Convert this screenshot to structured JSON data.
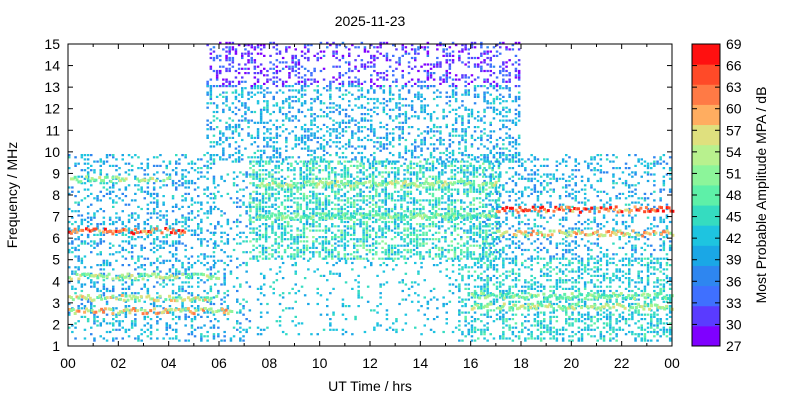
{
  "chart_data": {
    "type": "heatmap",
    "title": "2025-11-23",
    "xlabel": "UT Time / hrs",
    "ylabel": "Frequency / MHz",
    "xlim": [
      0,
      24
    ],
    "ylim": [
      1,
      15
    ],
    "x_ticks": [
      "00",
      "02",
      "04",
      "06",
      "08",
      "10",
      "12",
      "14",
      "16",
      "18",
      "20",
      "22",
      "00"
    ],
    "y_ticks": [
      "1",
      "2",
      "3",
      "4",
      "5",
      "6",
      "7",
      "8",
      "9",
      "10",
      "11",
      "12",
      "13",
      "14",
      "15"
    ],
    "colorbar": {
      "label": "Most Probable Amplitude MPA / dB",
      "range": [
        27,
        69
      ],
      "ticks": [
        "27",
        "30",
        "33",
        "36",
        "39",
        "42",
        "45",
        "48",
        "51",
        "54",
        "57",
        "60",
        "63",
        "66",
        "69"
      ],
      "colors": [
        "#7f00ff",
        "#5a3bff",
        "#3f70ff",
        "#2e86f0",
        "#1aa7e6",
        "#1ec4e0",
        "#35dcc0",
        "#5ef0a8",
        "#8cf59a",
        "#b8f18e",
        "#dfe07e",
        "#ffad60",
        "#ff7a45",
        "#ff4a28",
        "#ff1010"
      ]
    },
    "activity_regions": [
      {
        "t": [
          0,
          5.8
        ],
        "f": [
          1.2,
          9.8
        ],
        "level_db": [
          36,
          45
        ],
        "density": 0.5
      },
      {
        "t": [
          5.8,
          7.3
        ],
        "f": [
          1.2,
          9.0
        ],
        "level_db": [
          36,
          45
        ],
        "density": 0.35
      },
      {
        "t": [
          5.5,
          18
        ],
        "f": [
          13.0,
          15.0
        ],
        "level_db": [
          27,
          36
        ],
        "density": 0.55
      },
      {
        "t": [
          5.5,
          18
        ],
        "f": [
          9.5,
          13.0
        ],
        "level_db": [
          36,
          45
        ],
        "density": 0.6
      },
      {
        "t": [
          7.2,
          17.2
        ],
        "f": [
          5.0,
          9.5
        ],
        "level_db": [
          39,
          51
        ],
        "density": 0.95
      },
      {
        "t": [
          7.5,
          15.5
        ],
        "f": [
          1.5,
          5.0
        ],
        "level_db": [
          39,
          45
        ],
        "density": 0.2
      },
      {
        "t": [
          15.5,
          24
        ],
        "f": [
          1.2,
          5.0
        ],
        "level_db": [
          39,
          48
        ],
        "density": 0.75
      },
      {
        "t": [
          16.5,
          24
        ],
        "f": [
          5.0,
          9.8
        ],
        "level_db": [
          36,
          45
        ],
        "density": 0.45
      }
    ],
    "bands": [
      {
        "t": [
          0,
          4.6
        ],
        "f": 6.3,
        "level_db": [
          57,
          69
        ]
      },
      {
        "t": [
          0,
          6.5
        ],
        "f": 2.6,
        "level_db": [
          51,
          63
        ]
      },
      {
        "t": [
          0,
          6.0
        ],
        "f": 3.2,
        "level_db": [
          48,
          60
        ]
      },
      {
        "t": [
          0,
          6.0
        ],
        "f": 4.2,
        "level_db": [
          48,
          57
        ]
      },
      {
        "t": [
          0,
          4.0
        ],
        "f": 8.7,
        "level_db": [
          48,
          57
        ]
      },
      {
        "t": [
          7.5,
          17
        ],
        "f": 8.5,
        "level_db": [
          48,
          57
        ]
      },
      {
        "t": [
          7.5,
          17
        ],
        "f": 7.0,
        "level_db": [
          45,
          54
        ]
      },
      {
        "t": [
          17,
          24
        ],
        "f": 7.3,
        "level_db": [
          57,
          69
        ]
      },
      {
        "t": [
          17,
          24
        ],
        "f": 6.2,
        "level_db": [
          51,
          63
        ]
      },
      {
        "t": [
          16,
          24
        ],
        "f": 2.8,
        "level_db": [
          48,
          57
        ]
      },
      {
        "t": [
          16,
          24
        ],
        "f": 3.3,
        "level_db": [
          45,
          54
        ]
      }
    ]
  }
}
